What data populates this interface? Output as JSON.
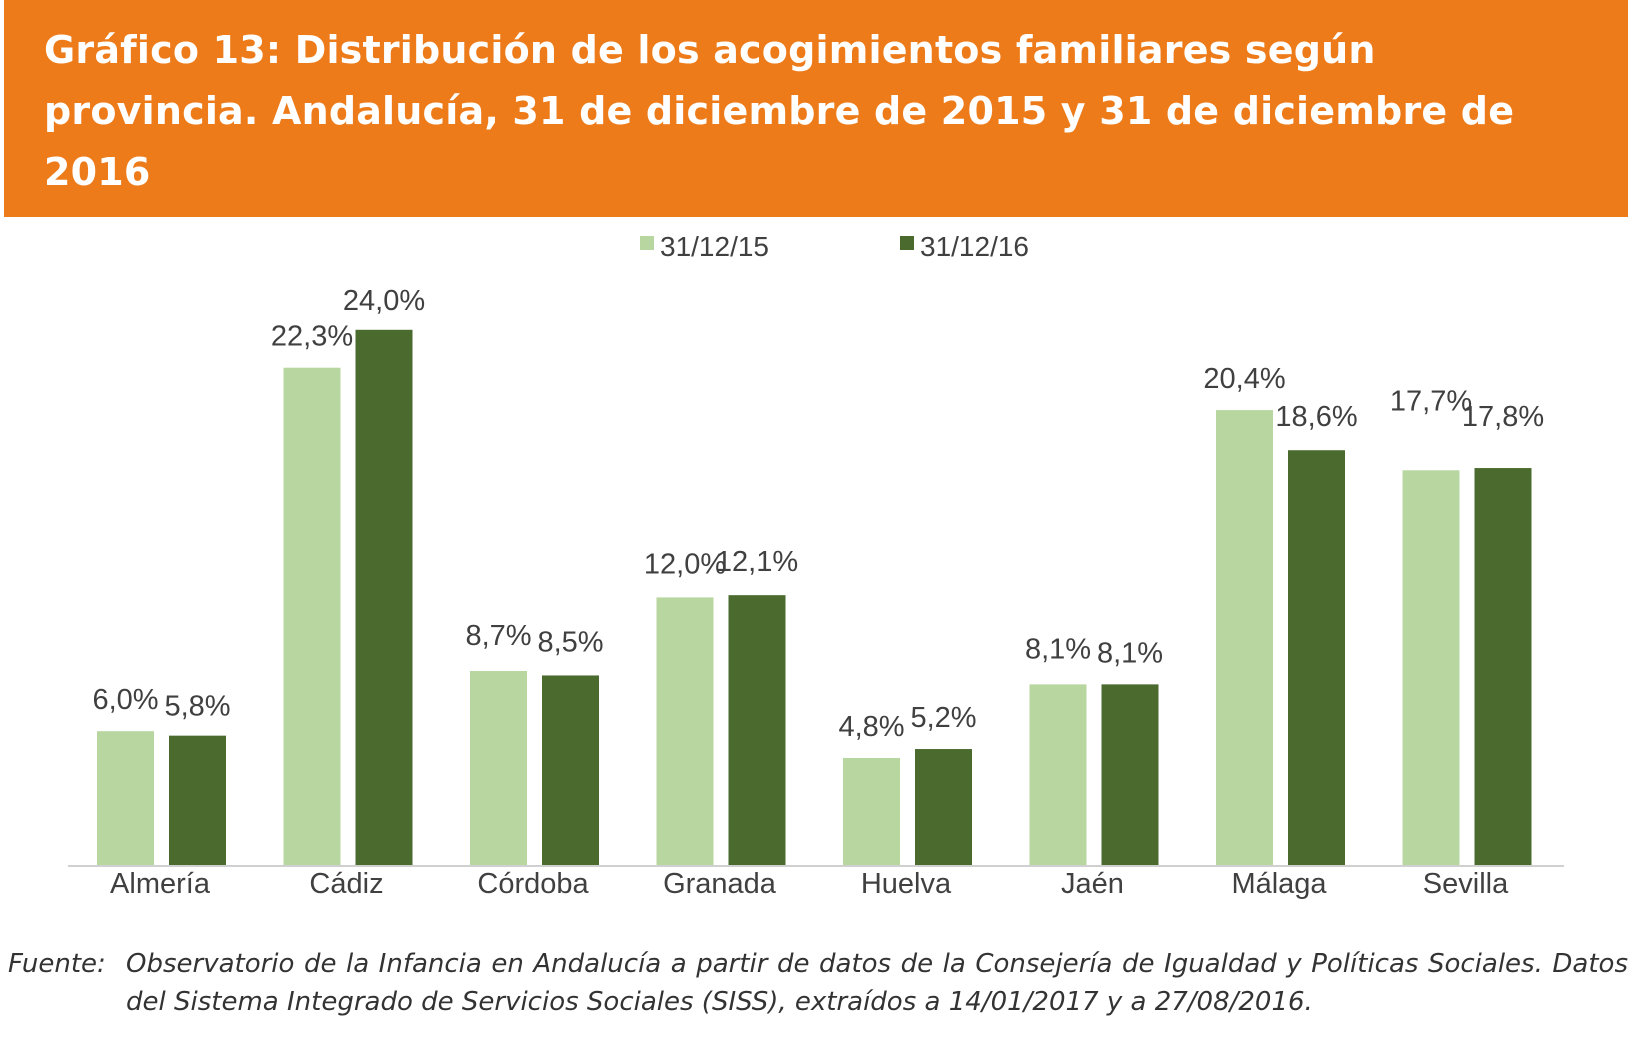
{
  "title": "Gráfico 13: Distribución de los acogimientos familiares según provincia. Andalucía, 31 de diciembre de 2015 y 31 de diciembre de 2016",
  "source": {
    "label": "Fuente:",
    "text": "Observatorio de la Infancia en Andalucía a partir de datos de la Consejería de Igualdad y Políticas Sociales. Datos del Sistema Integrado de Servicios Sociales (SISS), extraídos a 14/01/2017 y a 27/08/2016."
  },
  "colors": {
    "header": "#ee7b1a",
    "series_2015": "#b8d7a0",
    "series_2016": "#4a6a2e",
    "axis": "#d0d0d0",
    "text": "#404040"
  },
  "chart_data": {
    "type": "bar",
    "categories": [
      "Almería",
      "Cádiz",
      "Córdoba",
      "Granada",
      "Huelva",
      "Jaén",
      "Málaga",
      "Sevilla"
    ],
    "series": [
      {
        "name": "31/12/15",
        "values": [
          6.0,
          22.3,
          8.7,
          12.0,
          4.8,
          8.1,
          20.4,
          17.7
        ],
        "labels": [
          "6,0%",
          "22,3%",
          "8,7%",
          "12,0%",
          "4,8%",
          "8,1%",
          "20,4%",
          "17,7%"
        ]
      },
      {
        "name": "31/12/16",
        "values": [
          5.8,
          24.0,
          8.5,
          12.1,
          5.2,
          8.1,
          18.6,
          17.8
        ],
        "labels": [
          "5,8%",
          "24,0%",
          "8,5%",
          "12,1%",
          "5,2%",
          "8,1%",
          "18,6%",
          "17,8%"
        ]
      }
    ],
    "ylim": [
      0,
      25
    ],
    "grid": false,
    "legend": "top-center",
    "unit": "%"
  }
}
